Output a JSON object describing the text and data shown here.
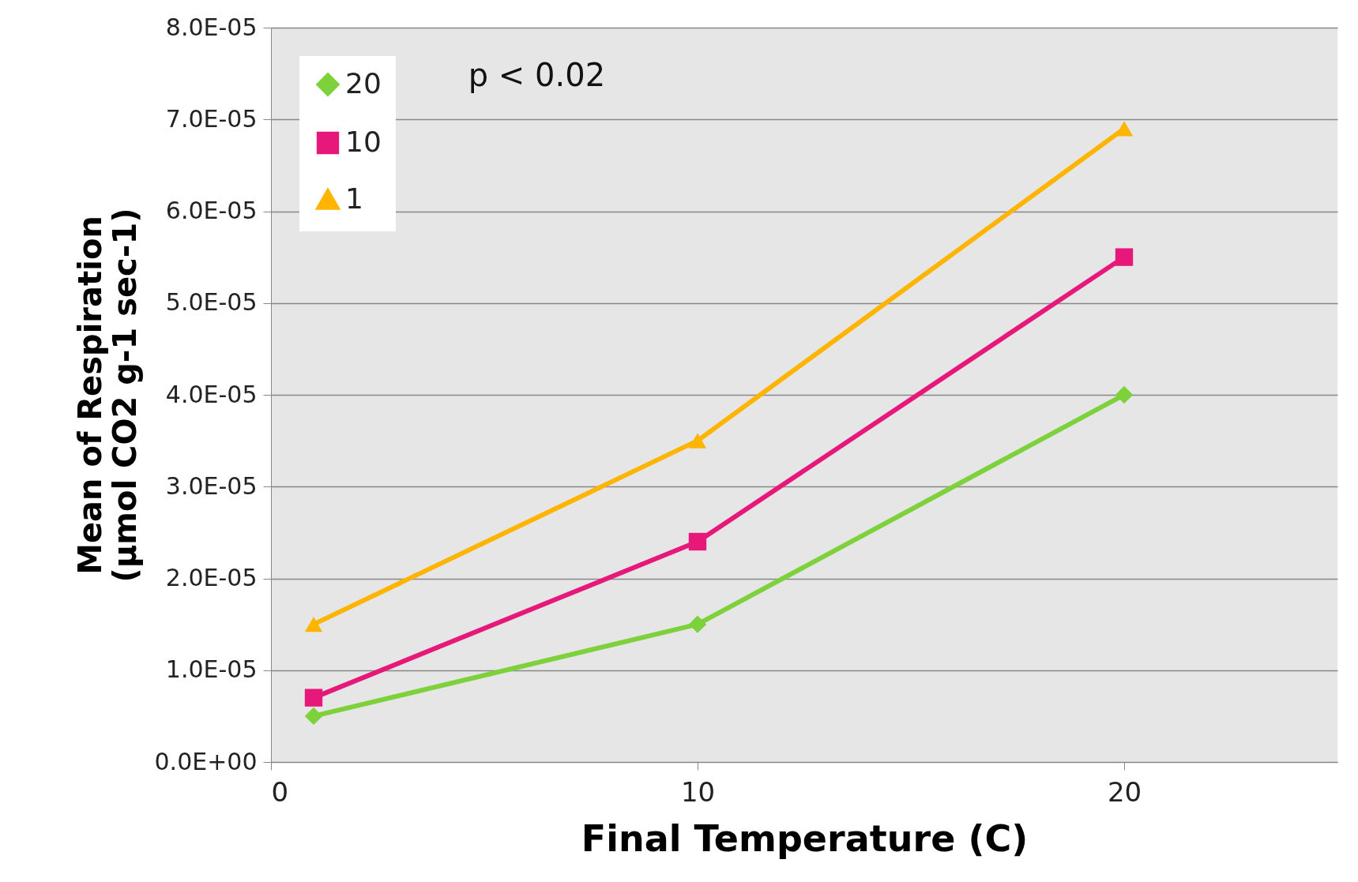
{
  "chart_data": {
    "type": "line",
    "xlabel": "Final Temperature (C)",
    "ylabel": "Mean of Respiration\n(µmol CO2 g-1 sec-1)",
    "x": [
      1,
      10,
      20
    ],
    "series": [
      {
        "name": "20",
        "color": "#7dd13b",
        "marker": "diamond",
        "values": [
          5e-06,
          1.5e-05,
          4e-05
        ]
      },
      {
        "name": "10",
        "color": "#e6197a",
        "marker": "square",
        "values": [
          7e-06,
          2.4e-05,
          5.5e-05
        ]
      },
      {
        "name": "1",
        "color": "#ffb400",
        "marker": "triangle",
        "values": [
          1.5e-05,
          3.5e-05,
          6.9e-05
        ]
      }
    ],
    "xlim": [
      0,
      25
    ],
    "xticks": [
      0,
      10,
      20
    ],
    "ylim": [
      0,
      8e-05
    ],
    "yticks": [
      {
        "value": 0,
        "label": "0.0E+00"
      },
      {
        "value": 1e-05,
        "label": "1.0E-05"
      },
      {
        "value": 2e-05,
        "label": "2.0E-05"
      },
      {
        "value": 3e-05,
        "label": "3.0E-05"
      },
      {
        "value": 4e-05,
        "label": "4.0E-05"
      },
      {
        "value": 5e-05,
        "label": "5.0E-05"
      },
      {
        "value": 6e-05,
        "label": "6.0E-05"
      },
      {
        "value": 7e-05,
        "label": "7.0E-05"
      },
      {
        "value": 8e-05,
        "label": "8.0E-05"
      }
    ],
    "grid": "y",
    "legend": "top left",
    "line_style": "solid",
    "annotations": [
      "p < 0.02"
    ]
  }
}
